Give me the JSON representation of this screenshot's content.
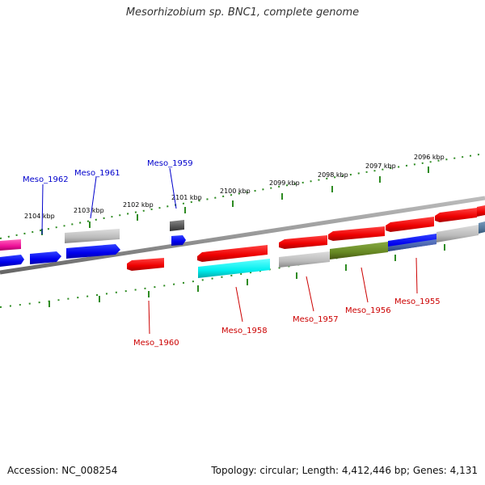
{
  "title": "Mesorhizobium sp. BNC1, complete genome",
  "footer": {
    "accession": "Accession: NC_008254",
    "summary": "Topology: circular; Length: 4,412,446 bp; Genes: 4,131"
  },
  "scale_labels": [
    "2104 kbp",
    "2103 kbp",
    "2102 kbp",
    "2101 kbp",
    "2100 kbp",
    "2099 kbp",
    "2098 kbp",
    "2097 kbp",
    "2096 kbp"
  ],
  "gene_labels": {
    "forward": [
      "Meso_1962",
      "Meso_1961",
      "Meso_1959"
    ],
    "reverse": [
      "Meso_1960",
      "Meso_1958",
      "Meso_1957",
      "Meso_1956",
      "Meso_1955"
    ]
  },
  "colors": {
    "forward_label": "#0000cc",
    "reverse_label": "#cc0000",
    "tick": "#2e8b22",
    "backbone": "#888888"
  }
}
